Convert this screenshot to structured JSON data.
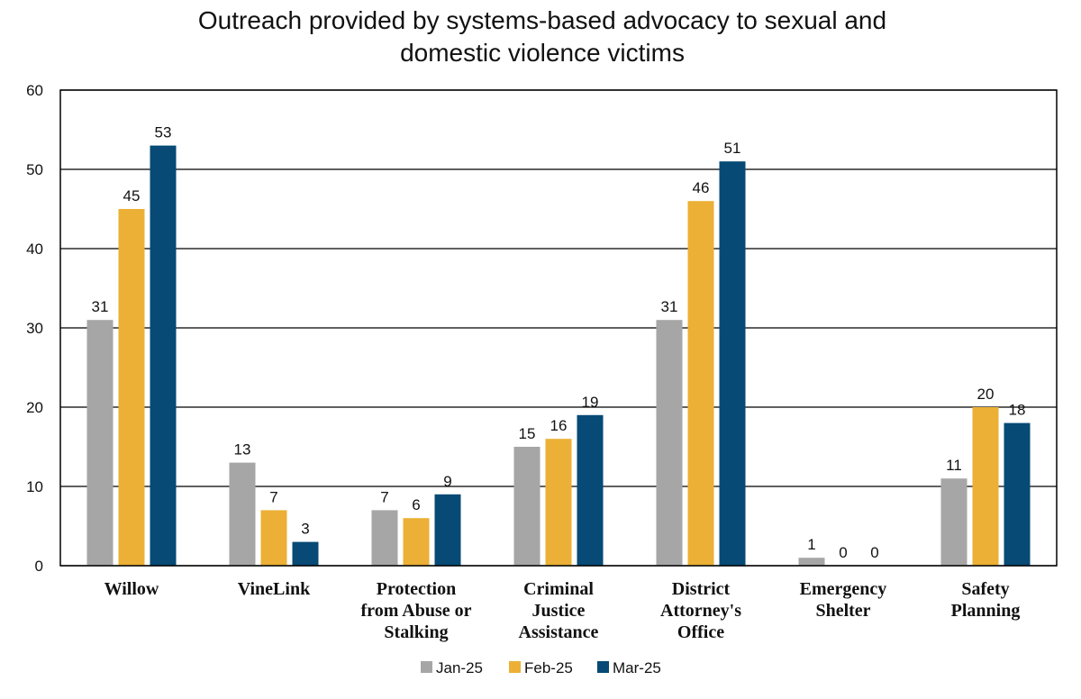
{
  "chart_data": {
    "type": "bar",
    "title_lines": [
      "Outreach provided by systems-based advocacy to sexual and",
      "domestic violence victims"
    ],
    "categories": [
      [
        "Willow"
      ],
      [
        "VineLink"
      ],
      [
        "Protection",
        "from Abuse or",
        "Stalking"
      ],
      [
        "Criminal",
        "Justice",
        "Assistance"
      ],
      [
        "District",
        "Attorney's",
        "Office"
      ],
      [
        "Emergency",
        "Shelter"
      ],
      [
        "Safety",
        "Planning"
      ]
    ],
    "series": [
      {
        "name": "Jan-25",
        "color": "#A6A6A6",
        "values": [
          31,
          13,
          7,
          15,
          31,
          1,
          11
        ]
      },
      {
        "name": "Feb-25",
        "color": "#EBB035",
        "values": [
          45,
          7,
          6,
          16,
          46,
          0,
          20
        ]
      },
      {
        "name": "Mar-25",
        "color": "#064A75",
        "values": [
          53,
          3,
          9,
          19,
          51,
          0,
          18
        ]
      }
    ],
    "ylim": [
      0,
      60
    ],
    "yticks": [
      0,
      10,
      20,
      30,
      40,
      50,
      60
    ],
    "grid": true,
    "legend_position": "bottom-center",
    "xlabel": "",
    "ylabel": ""
  }
}
